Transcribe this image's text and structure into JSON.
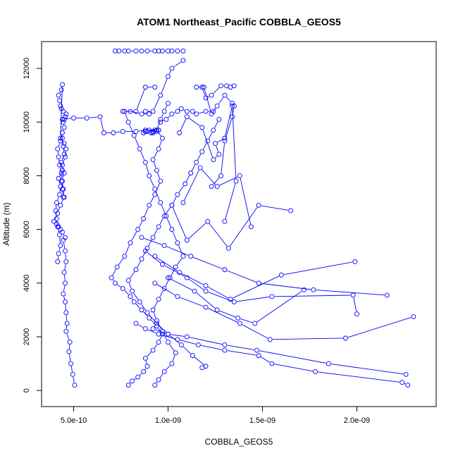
{
  "chart_data": {
    "type": "scatter",
    "title": "ATOM1 Northeast_Pacific COBBLA_GEOS5",
    "xlabel": "COBBLA_GEOS5",
    "ylabel": "Altitude (m)",
    "xlim": [
      3.3e-10,
      2.42e-09
    ],
    "ylim": [
      -600,
      13000
    ],
    "x_ticks": [
      5e-10,
      1e-09,
      1.5e-09,
      2e-09
    ],
    "x_tick_labels": [
      "5.0e-10",
      "1.0e-09",
      "1.5e-09",
      "2.0e-09"
    ],
    "y_ticks": [
      0,
      2000,
      4000,
      6000,
      8000,
      10000,
      12000
    ],
    "y_tick_labels": [
      "0",
      "2000",
      "4000",
      "6000",
      "8000",
      "10000",
      "12000"
    ],
    "grid": false,
    "marker": "open-circle",
    "line": true,
    "color": "#0000ff",
    "series": [
      {
        "x": [
          5.05e-10,
          4.95e-10,
          4.85e-10,
          4.75e-10,
          4.8e-10,
          4.6e-10,
          4.65e-10,
          4.6e-10,
          4.55e-10,
          4.45e-10,
          4.55e-10,
          4.5e-10,
          4.6e-10,
          4.55e-10,
          4.45e-10,
          4.55e-10,
          4.4e-10,
          4.3e-10,
          4.2e-10,
          4.1e-10,
          3.95e-10,
          4.15e-10,
          4.3e-10,
          4.5e-10,
          4.45e-10,
          4.4e-10,
          4.35e-10,
          4.25e-10,
          4.2e-10,
          4.15e-10,
          4.3e-10,
          4.4e-10,
          4.5e-10,
          4.45e-10,
          4.5e-10,
          4.55e-10,
          4.6e-10,
          4.45e-10,
          4.35e-10,
          4.3e-10,
          4.25e-10,
          4.2e-10,
          4.35e-10,
          4.4e-10,
          4.3e-10,
          4.5e-10,
          4.6e-10,
          4.55e-10,
          4.4e-10,
          4.5e-10,
          4.35e-10,
          4.4e-10,
          4.45e-10
        ],
        "y": [
          200,
          600,
          1000,
          1450,
          1800,
          2200,
          2500,
          2900,
          3300,
          3600,
          4000,
          4400,
          4800,
          5200,
          5600,
          5700,
          5900,
          6000,
          6100,
          6200,
          6300,
          6600,
          6900,
          7200,
          7500,
          7800,
          8100,
          8400,
          8700,
          9000,
          9300,
          9600,
          9800,
          10000,
          10100,
          10200,
          10300,
          10400,
          10500,
          10600,
          10800,
          11000,
          11200,
          11400,
          9400,
          9200,
          9000,
          8700,
          8400,
          8100,
          7800,
          7500,
          7200
        ]
      },
      {
        "x": [
          4.15e-10,
          4.2e-10,
          4.3e-10,
          4.25e-10,
          4.15e-10,
          4.1e-10,
          4.05e-10,
          4.1e-10,
          4.25e-10,
          4.3e-10,
          4.2e-10,
          4.4e-10,
          4.35e-10,
          4.5e-10,
          4.45e-10,
          4.4e-10
        ],
        "y": [
          4800,
          5100,
          5400,
          5800,
          6100,
          6400,
          6700,
          7000,
          7300,
          7600,
          7900,
          8200,
          8500,
          8800,
          9100,
          9400
        ]
      },
      {
        "x": [
          4.4e-10,
          5e-10,
          5.7e-10,
          6.4e-10,
          6.6e-10,
          7.1e-10,
          7.6e-10,
          8.3e-10,
          8.8e-10,
          9.5e-10
        ],
        "y": [
          10100,
          10150,
          10150,
          10200,
          9600,
          9600,
          9650,
          9650,
          9700,
          9700
        ]
      },
      {
        "x": [
          8.7e-10,
          8.8e-10,
          8.9e-10,
          9e-10,
          9.1e-10,
          9.2e-10,
          9.3e-10,
          9.4e-10,
          9.5e-10,
          9.2e-10,
          8.8e-10
        ],
        "y": [
          9600,
          9650,
          9650,
          9700,
          9600,
          9650,
          9700,
          9650,
          9700,
          9600,
          9650
        ]
      },
      {
        "x": [
          7.9e-10,
          8.1e-10,
          8.4e-10,
          8.7e-10,
          8.9e-10,
          8.8e-10,
          9.2e-10,
          9.5e-10,
          9.7e-10,
          9.4e-10,
          9e-10,
          8.6e-10,
          8.2e-10,
          8e-10,
          7.6e-10,
          7.2e-10,
          7e-10,
          7.3e-10,
          7.7e-10,
          8e-10,
          8.4e-10,
          8.7e-10,
          9e-10,
          9.3e-10,
          9.6e-10,
          9.4e-10,
          9.2e-10,
          9.5e-10,
          9.7e-10,
          9.4e-10,
          9.6e-10,
          9.8e-10,
          1e-09
        ],
        "y": [
          200,
          350,
          500,
          700,
          900,
          1200,
          1500,
          1800,
          2100,
          2400,
          2700,
          3000,
          3300,
          3500,
          3800,
          4000,
          4200,
          4600,
          5000,
          5500,
          6000,
          6400,
          6900,
          7300,
          7800,
          8200,
          8600,
          9000,
          9400,
          9700,
          10100,
          10400,
          10700
        ]
      },
      {
        "x": [
          9.3e-10,
          9.5e-10,
          9.8e-10,
          1.02e-09,
          1.04e-09,
          1e-09,
          9.7e-10,
          9.4e-10,
          9.2e-10,
          9.5e-10,
          9.8e-10,
          1.01e-09,
          1.04e-09,
          1.08e-09,
          1.05e-09,
          1.02e-09,
          9.9e-10,
          9.6e-10,
          9.3e-10,
          9e-10,
          8.8e-10,
          8.5e-10,
          8.2e-10,
          7.9e-10,
          7.7e-10
        ],
        "y": [
          200,
          400,
          700,
          1000,
          1400,
          1800,
          2200,
          2600,
          3000,
          3400,
          3800,
          4200,
          4600,
          5000,
          5500,
          6000,
          6500,
          7000,
          7500,
          8000,
          8500,
          9000,
          9500,
          10000,
          10400
        ]
      },
      {
        "x": [
          1.18e-09,
          1.2e-09,
          1.13e-09,
          1.07e-09,
          1e-09,
          9.4e-10,
          8.9e-10,
          8.5e-10,
          8.1e-10,
          7.9e-10,
          8.3e-10,
          8.6e-10,
          8.9e-10,
          9.2e-10,
          9.5e-10,
          9.8e-10,
          1.02e-09,
          1.05e-09,
          1.09e-09,
          1.12e-09,
          1.15e-09,
          1.18e-09,
          1.21e-09,
          1.24e-09,
          1.27e-09
        ],
        "y": [
          850,
          900,
          1300,
          1700,
          2100,
          2500,
          2900,
          3300,
          3700,
          4100,
          4500,
          4900,
          5300,
          5700,
          6100,
          6500,
          6900,
          7300,
          7700,
          8100,
          8500,
          8900,
          9300,
          9700,
          10100
        ]
      },
      {
        "x": [
          2.27e-09,
          2.24e-09,
          1.78e-09,
          1.55e-09,
          1.48e-09,
          1.3e-09,
          1.16e-09,
          1.05e-09,
          9.5e-10,
          8.8e-10,
          8.3e-10
        ],
        "y": [
          200,
          300,
          700,
          1000,
          1300,
          1500,
          1700,
          1900,
          2100,
          2300,
          2500
        ]
      },
      {
        "x": [
          2.26e-09,
          1.85e-09,
          1.47e-09,
          1.3e-09,
          1.1e-09,
          1e-09,
          9.2e-10
        ],
        "y": [
          600,
          1000,
          1500,
          1700,
          2000,
          2100,
          2300
        ]
      },
      {
        "x": [
          2.3e-09,
          1.94e-09,
          1.54e-09,
          1.38e-09,
          1.2e-09,
          1.05e-09,
          9.3e-10
        ],
        "y": [
          2750,
          1950,
          1900,
          2500,
          3100,
          3500,
          4000
        ]
      },
      {
        "x": [
          2.16e-09,
          1.77e-09,
          1.48e-09,
          1.3e-09,
          1.12e-09,
          9.8e-10,
          8.6e-10
        ],
        "y": [
          3550,
          3750,
          4000,
          4500,
          5000,
          5400,
          5700
        ]
      },
      {
        "x": [
          2e-09,
          1.98e-09,
          1.55e-09,
          1.35e-09,
          1.2e-09,
          1.1e-09,
          9.7e-10,
          8.8e-10
        ],
        "y": [
          2850,
          3550,
          3500,
          3300,
          3700,
          4200,
          4700,
          5200
        ]
      },
      {
        "x": [
          1.99e-09,
          1.6e-09,
          1.33e-09,
          1.2e-09,
          1.06e-09,
          9.3e-10
        ],
        "y": [
          4800,
          4300,
          3400,
          3900,
          4400,
          5000
        ]
      },
      {
        "x": [
          1.72e-09,
          1.46e-09,
          1.37e-09,
          1.26e-09,
          1.14e-09,
          1e-09
        ],
        "y": [
          3750,
          2500,
          2700,
          3000,
          3700,
          4200
        ]
      },
      {
        "x": [
          1.65e-09,
          1.48e-09,
          1.32e-09,
          1.21e-09,
          1.1e-09,
          1.02e-09
        ],
        "y": [
          6700,
          6900,
          5300,
          6300,
          5600,
          6900
        ]
      },
      {
        "x": [
          1.44e-09,
          1.38e-09,
          1.26e-09,
          1.17e-09,
          1.08e-09
        ],
        "y": [
          6100,
          8000,
          7600,
          8300,
          7000
        ]
      },
      {
        "x": [
          1.3e-09,
          1.36e-09,
          1.34e-09,
          1.3e-09,
          1.25e-09,
          1.27e-09,
          1.24e-09,
          1.18e-09,
          1.1e-09,
          1.06e-09
        ],
        "y": [
          6300,
          7800,
          10600,
          9400,
          9200,
          8800,
          8600,
          9800,
          10200,
          9600
        ]
      },
      {
        "x": [
          1.23e-09,
          1.28e-09,
          1.3e-09,
          1.34e-09,
          1.35e-09,
          1.34e-09,
          1.3e-09,
          1.26e-09,
          1.23e-09,
          1.19e-09,
          1.15e-09
        ],
        "y": [
          7600,
          8000,
          9300,
          10200,
          10600,
          10700,
          11000,
          10600,
          10300,
          11300,
          11300
        ]
      },
      {
        "x": [
          1.18e-09,
          1.2e-09,
          1.23e-09,
          1.28e-09,
          1.31e-09,
          1.33e-09,
          1.35e-09
        ],
        "y": [
          11300,
          10900,
          11000,
          11350,
          11350,
          11300,
          11350
        ]
      },
      {
        "x": [
          7.2e-10,
          7.4e-10,
          7.7e-10,
          7.9e-10,
          8.3e-10,
          8.6e-10,
          8.9e-10,
          9.3e-10,
          9.5e-10,
          9.7e-10,
          1e-09,
          1.02e-09,
          1.05e-09,
          1.08e-09
        ],
        "y": [
          12650,
          12650,
          12650,
          12650,
          12650,
          12650,
          12650,
          12650,
          12650,
          12650,
          12650,
          12650,
          12650,
          12650
        ]
      },
      {
        "x": [
          1.08e-09,
          1.02e-09,
          1e-09,
          9.6e-10,
          9.2e-10,
          8.8e-10,
          9e-10,
          8.6e-10,
          8e-10,
          7.6e-10,
          8.3e-10,
          8.8e-10,
          9.3e-10
        ],
        "y": [
          12300,
          12000,
          11700,
          11000,
          10400,
          10400,
          10300,
          10300,
          10400,
          10400,
          10400,
          11300,
          11300
        ]
      },
      {
        "x": [
          9.6e-10,
          9.9e-10,
          1.02e-09,
          1.05e-09,
          1.07e-09,
          1.1e-09,
          1.13e-09,
          1.15e-09,
          1.2e-09,
          1.24e-09
        ],
        "y": [
          10000,
          10100,
          10300,
          10400,
          10500,
          10400,
          10400,
          10300,
          10400,
          10400
        ]
      }
    ]
  }
}
